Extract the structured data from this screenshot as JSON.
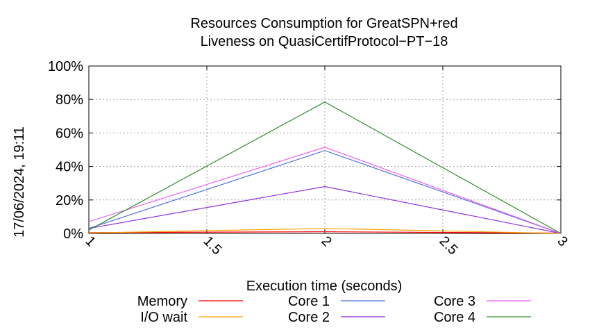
{
  "timestamp": "17/06/2024, 19:11",
  "chart_data": {
    "type": "line",
    "title": [
      "Resources Consumption for GreatSPN+red",
      "Liveness on QuasiCertifProtocol−PT−18"
    ],
    "xlabel": "Execution time (seconds)",
    "ylabel": "",
    "xlim": [
      1,
      3
    ],
    "ylim": [
      0,
      100
    ],
    "x_ticks": [
      "1",
      "1.5",
      "2",
      "2.5",
      "3"
    ],
    "y_ticks": [
      "0%",
      "20%",
      "40%",
      "60%",
      "80%",
      "100%"
    ],
    "grid": true,
    "legend_position": "bottom",
    "series": [
      {
        "name": "Memory",
        "color": "#ff0000",
        "x": [
          1,
          2,
          3
        ],
        "y": [
          0.5,
          1.0,
          0.2
        ]
      },
      {
        "name": "I/O wait",
        "color": "#ff9f00",
        "x": [
          1,
          2,
          3
        ],
        "y": [
          0.3,
          3.0,
          0.0
        ]
      },
      {
        "name": "Core 1",
        "color": "#4f6fdf",
        "x": [
          1,
          2,
          3
        ],
        "y": [
          3.0,
          49.5,
          0.0
        ]
      },
      {
        "name": "Core 2",
        "color": "#8f2fdf",
        "x": [
          1,
          2,
          3
        ],
        "y": [
          3.0,
          28.0,
          0.0
        ]
      },
      {
        "name": "Core 3",
        "color": "#ef5fef",
        "x": [
          1,
          2,
          3
        ],
        "y": [
          7.0,
          51.5,
          0.0
        ]
      },
      {
        "name": "Core 4",
        "color": "#2f8f2f",
        "x": [
          1,
          2,
          3
        ],
        "y": [
          2.0,
          78.5,
          0.0
        ]
      }
    ]
  }
}
